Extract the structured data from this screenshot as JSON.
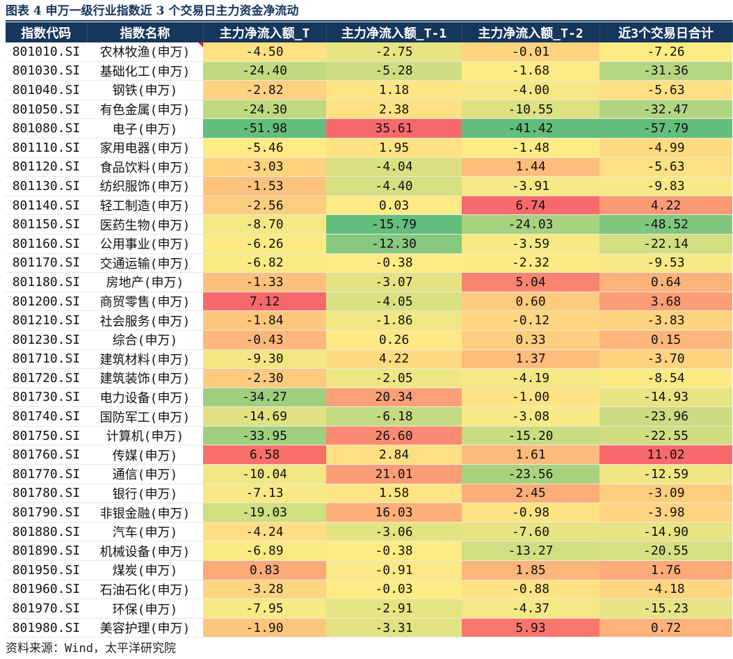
{
  "title": "图表 4  申万一级行业指数近 3 个交易日主力资金净流动",
  "source": "资料来源：Wind，太平洋研究院",
  "colors": {
    "header_bg": "#16365c",
    "header_text": "#ffffff",
    "scale_low": "#63be7b",
    "scale_mid": "#ffeb84",
    "scale_high": "#f8696b"
  },
  "columns": [
    "指数代码",
    "指数名称",
    "主力净流入额_T",
    "主力净流入额_T-1",
    "主力净流入额_T-2",
    "近3个交易日合计"
  ],
  "rows": [
    {
      "code": "801010.SI",
      "name": "农林牧渔(申万)",
      "t": -4.5,
      "t1": -2.75,
      "t2": -0.01,
      "sum": -7.26
    },
    {
      "code": "801030.SI",
      "name": "基础化工(申万)",
      "t": -24.4,
      "t1": -5.28,
      "t2": -1.68,
      "sum": -31.36
    },
    {
      "code": "801040.SI",
      "name": "钢铁(申万)",
      "t": -2.82,
      "t1": 1.18,
      "t2": -4.0,
      "sum": -5.63
    },
    {
      "code": "801050.SI",
      "name": "有色金属(申万)",
      "t": -24.3,
      "t1": 2.38,
      "t2": -10.55,
      "sum": -32.47
    },
    {
      "code": "801080.SI",
      "name": "电子(申万)",
      "t": -51.98,
      "t1": 35.61,
      "t2": -41.42,
      "sum": -57.79
    },
    {
      "code": "801110.SI",
      "name": "家用电器(申万)",
      "t": -5.46,
      "t1": 1.95,
      "t2": -1.48,
      "sum": -4.99
    },
    {
      "code": "801120.SI",
      "name": "食品饮料(申万)",
      "t": -3.03,
      "t1": -4.04,
      "t2": 1.44,
      "sum": -5.63
    },
    {
      "code": "801130.SI",
      "name": "纺织服饰(申万)",
      "t": -1.53,
      "t1": -4.4,
      "t2": -3.91,
      "sum": -9.83
    },
    {
      "code": "801140.SI",
      "name": "轻工制造(申万)",
      "t": -2.56,
      "t1": 0.03,
      "t2": 6.74,
      "sum": 4.22
    },
    {
      "code": "801150.SI",
      "name": "医药生物(申万)",
      "t": -8.7,
      "t1": -15.79,
      "t2": -24.03,
      "sum": -48.52
    },
    {
      "code": "801160.SI",
      "name": "公用事业(申万)",
      "t": -6.26,
      "t1": -12.3,
      "t2": -3.59,
      "sum": -22.14
    },
    {
      "code": "801170.SI",
      "name": "交通运输(申万)",
      "t": -6.82,
      "t1": -0.38,
      "t2": -2.32,
      "sum": -9.53
    },
    {
      "code": "801180.SI",
      "name": "房地产(申万)",
      "t": -1.33,
      "t1": -3.07,
      "t2": 5.04,
      "sum": 0.64
    },
    {
      "code": "801200.SI",
      "name": "商贸零售(申万)",
      "t": 7.12,
      "t1": -4.05,
      "t2": 0.6,
      "sum": 3.68
    },
    {
      "code": "801210.SI",
      "name": "社会服务(申万)",
      "t": -1.84,
      "t1": -1.86,
      "t2": -0.12,
      "sum": -3.83
    },
    {
      "code": "801230.SI",
      "name": "综合(申万)",
      "t": -0.43,
      "t1": 0.26,
      "t2": 0.33,
      "sum": 0.15
    },
    {
      "code": "801710.SI",
      "name": "建筑材料(申万)",
      "t": -9.3,
      "t1": 4.22,
      "t2": 1.37,
      "sum": -3.7
    },
    {
      "code": "801720.SI",
      "name": "建筑装饰(申万)",
      "t": -2.3,
      "t1": -2.05,
      "t2": -4.19,
      "sum": -8.54
    },
    {
      "code": "801730.SI",
      "name": "电力设备(申万)",
      "t": -34.27,
      "t1": 20.34,
      "t2": -1.0,
      "sum": -14.93
    },
    {
      "code": "801740.SI",
      "name": "国防军工(申万)",
      "t": -14.69,
      "t1": -6.18,
      "t2": -3.08,
      "sum": -23.96
    },
    {
      "code": "801750.SI",
      "name": "计算机(申万)",
      "t": -33.95,
      "t1": 26.6,
      "t2": -15.2,
      "sum": -22.55
    },
    {
      "code": "801760.SI",
      "name": "传媒(申万)",
      "t": 6.58,
      "t1": 2.84,
      "t2": 1.61,
      "sum": 11.02
    },
    {
      "code": "801770.SI",
      "name": "通信(申万)",
      "t": -10.04,
      "t1": 21.01,
      "t2": -23.56,
      "sum": -12.59
    },
    {
      "code": "801780.SI",
      "name": "银行(申万)",
      "t": -7.13,
      "t1": 1.58,
      "t2": 2.45,
      "sum": -3.09
    },
    {
      "code": "801790.SI",
      "name": "非银金融(申万)",
      "t": -19.03,
      "t1": 16.03,
      "t2": -0.98,
      "sum": -3.98
    },
    {
      "code": "801880.SI",
      "name": "汽车(申万)",
      "t": -4.24,
      "t1": -3.06,
      "t2": -7.6,
      "sum": -14.9
    },
    {
      "code": "801890.SI",
      "name": "机械设备(申万)",
      "t": -6.89,
      "t1": -0.38,
      "t2": -13.27,
      "sum": -20.55
    },
    {
      "code": "801950.SI",
      "name": "煤炭(申万)",
      "t": 0.83,
      "t1": -0.91,
      "t2": 1.85,
      "sum": 1.76
    },
    {
      "code": "801960.SI",
      "name": "石油石化(申万)",
      "t": -3.28,
      "t1": -0.03,
      "t2": -0.88,
      "sum": -4.18
    },
    {
      "code": "801970.SI",
      "name": "环保(申万)",
      "t": -7.95,
      "t1": -2.91,
      "t2": -4.37,
      "sum": -15.23
    },
    {
      "code": "801980.SI",
      "name": "美容护理(申万)",
      "t": -1.9,
      "t1": -3.31,
      "t2": 5.93,
      "sum": 0.72
    }
  ]
}
